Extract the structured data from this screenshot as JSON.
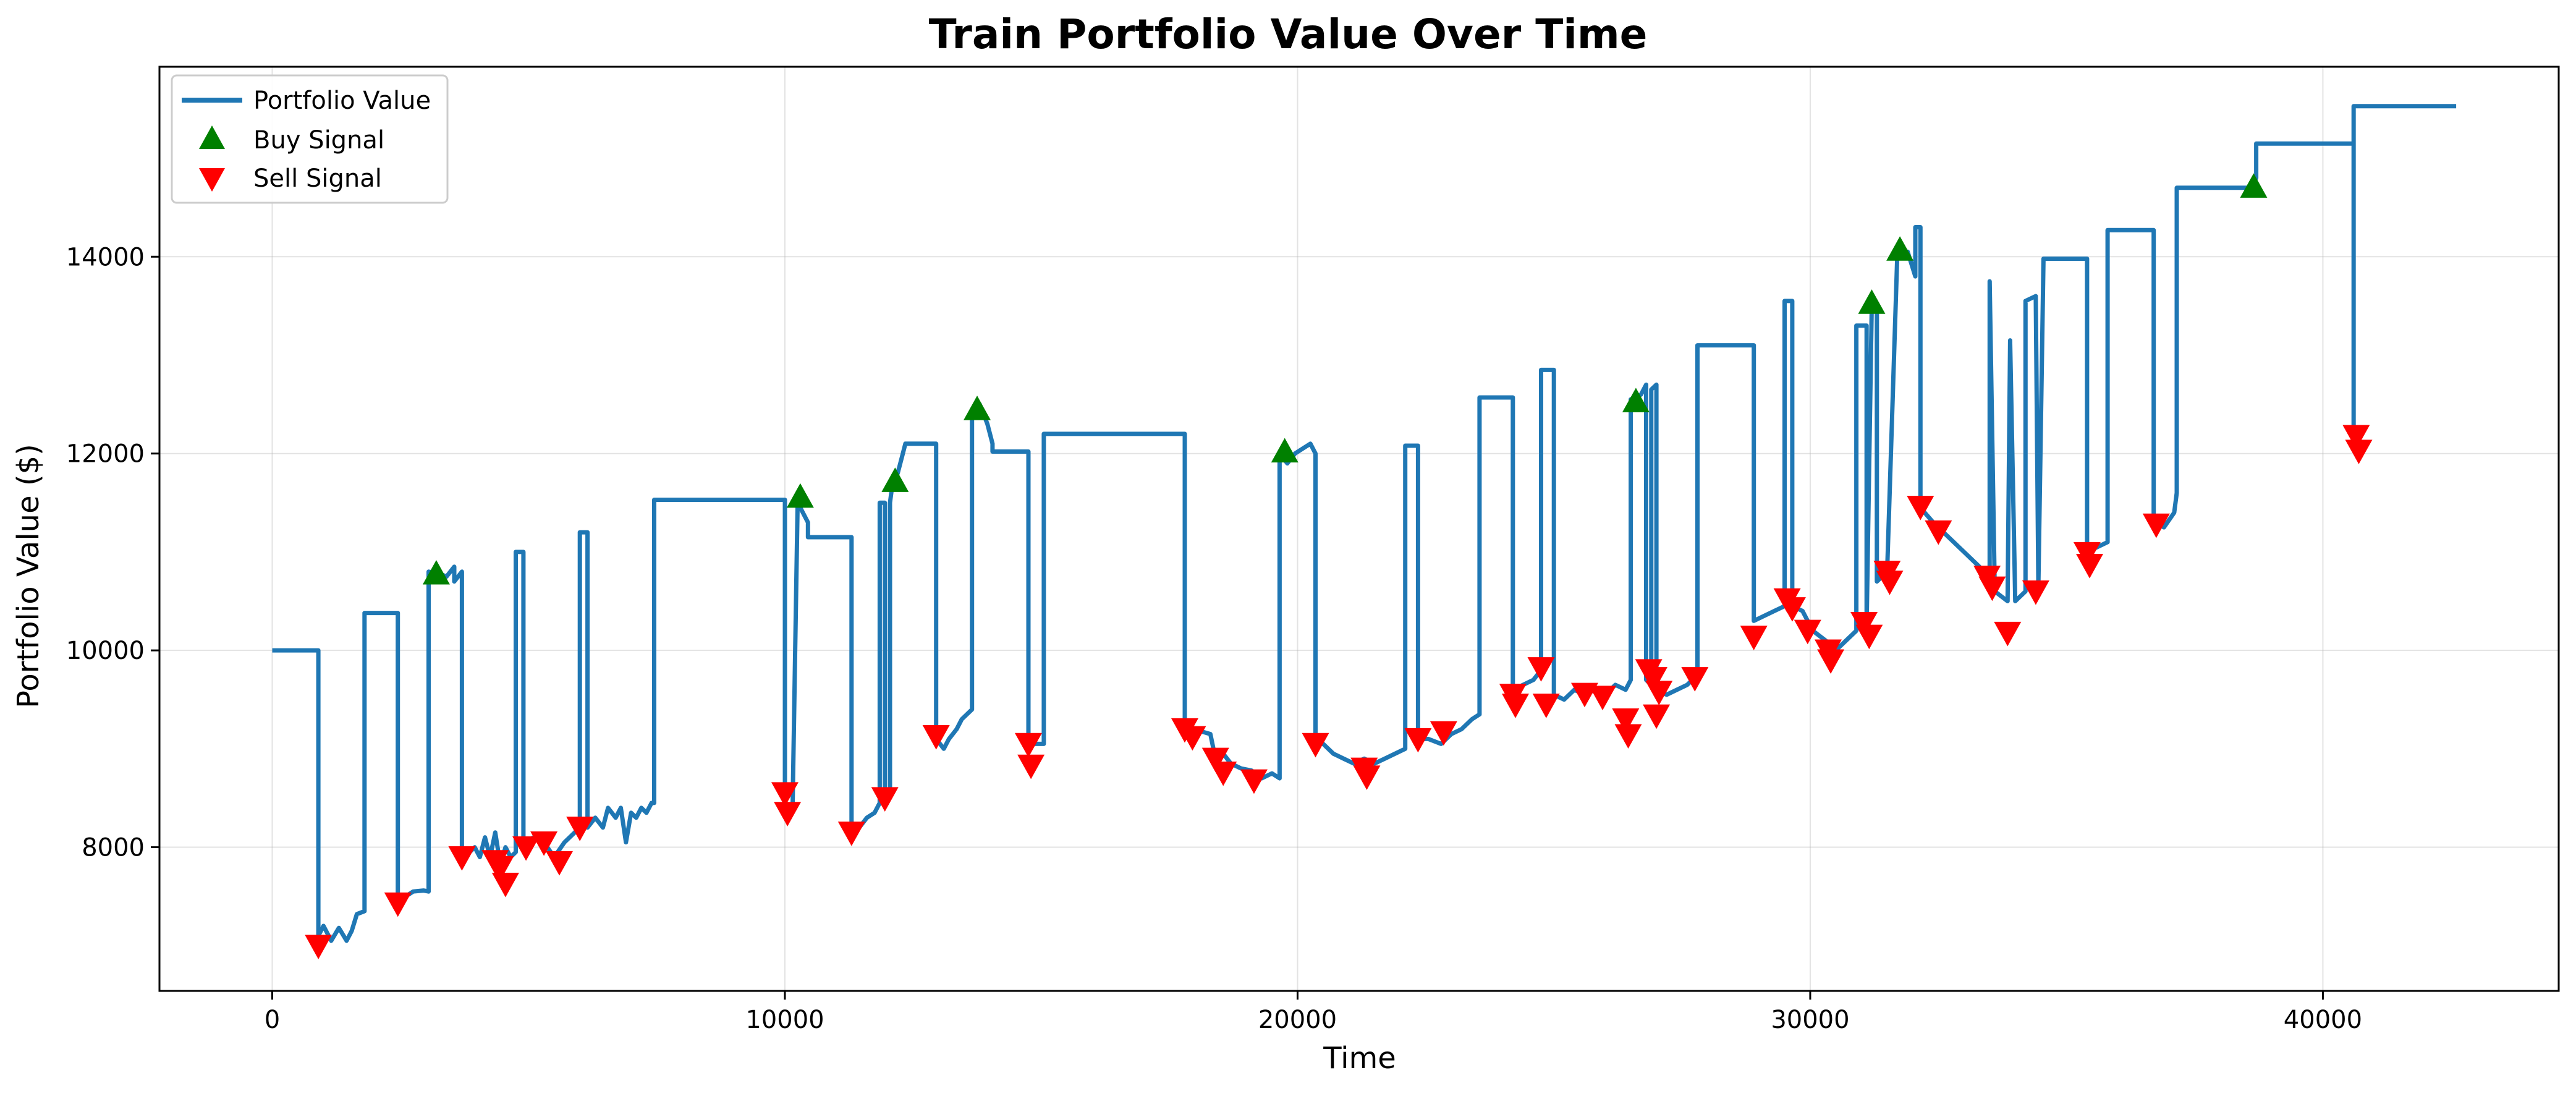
{
  "chart_data": {
    "type": "line",
    "title": "Train Portfolio Value Over Time",
    "xlabel": "Time",
    "ylabel": "Portfolio Value ($)",
    "xlim": [
      -2200,
      44600
    ],
    "ylim": [
      6540,
      15930
    ],
    "x_ticks": [
      0,
      10000,
      20000,
      30000,
      40000
    ],
    "y_ticks": [
      8000,
      10000,
      12000,
      14000
    ],
    "grid": true,
    "legend_position": "top-left",
    "series": [
      {
        "name": "Portfolio Value",
        "color": "#1f77b4",
        "points": [
          [
            0,
            10000
          ],
          [
            900,
            10000
          ],
          [
            900,
            7100
          ],
          [
            1000,
            7200
          ],
          [
            1150,
            7050
          ],
          [
            1300,
            7180
          ],
          [
            1450,
            7050
          ],
          [
            1550,
            7150
          ],
          [
            1650,
            7320
          ],
          [
            1800,
            7350
          ],
          [
            1800,
            10380
          ],
          [
            2450,
            10380
          ],
          [
            2450,
            7400
          ],
          [
            2600,
            7500
          ],
          [
            2750,
            7550
          ],
          [
            2950,
            7560
          ],
          [
            3050,
            7550
          ],
          [
            3050,
            10800
          ],
          [
            3250,
            10780
          ],
          [
            3400,
            10750
          ],
          [
            3550,
            10850
          ],
          [
            3550,
            10700
          ],
          [
            3700,
            10800
          ],
          [
            3700,
            7950
          ],
          [
            3850,
            7950
          ],
          [
            3950,
            8000
          ],
          [
            4050,
            7900
          ],
          [
            4150,
            8100
          ],
          [
            4250,
            7900
          ],
          [
            4350,
            8150
          ],
          [
            4450,
            7820
          ],
          [
            4550,
            8000
          ],
          [
            4650,
            7900
          ],
          [
            4750,
            7950
          ],
          [
            4750,
            11000
          ],
          [
            4900,
            11000
          ],
          [
            4900,
            8050
          ],
          [
            5100,
            8100
          ],
          [
            5300,
            8050
          ],
          [
            5500,
            7900
          ],
          [
            5700,
            8050
          ],
          [
            5900,
            8150
          ],
          [
            6000,
            8200
          ],
          [
            6000,
            11200
          ],
          [
            6150,
            11200
          ],
          [
            6150,
            8200
          ],
          [
            6300,
            8300
          ],
          [
            6450,
            8200
          ],
          [
            6550,
            8400
          ],
          [
            6700,
            8300
          ],
          [
            6800,
            8400
          ],
          [
            6900,
            8050
          ],
          [
            7000,
            8350
          ],
          [
            7100,
            8300
          ],
          [
            7200,
            8400
          ],
          [
            7300,
            8350
          ],
          [
            7400,
            8450
          ],
          [
            7450,
            8450
          ],
          [
            7450,
            11530
          ],
          [
            10000,
            11530
          ],
          [
            10000,
            8450
          ],
          [
            10150,
            8400
          ],
          [
            10250,
            11550
          ],
          [
            10300,
            11450
          ],
          [
            10400,
            11350
          ],
          [
            10450,
            11300
          ],
          [
            10450,
            11150
          ],
          [
            11300,
            11150
          ],
          [
            11300,
            8250
          ],
          [
            11450,
            8200
          ],
          [
            11600,
            8300
          ],
          [
            11750,
            8350
          ],
          [
            11850,
            8450
          ],
          [
            11850,
            11500
          ],
          [
            11950,
            11500
          ],
          [
            11950,
            8500
          ],
          [
            12050,
            8550
          ],
          [
            12050,
            11500
          ],
          [
            12100,
            11700
          ],
          [
            12200,
            11800
          ],
          [
            12300,
            12000
          ],
          [
            12350,
            12100
          ],
          [
            12950,
            12100
          ],
          [
            12950,
            9100
          ],
          [
            13100,
            9000
          ],
          [
            13200,
            9100
          ],
          [
            13350,
            9200
          ],
          [
            13450,
            9300
          ],
          [
            13550,
            9350
          ],
          [
            13650,
            9400
          ],
          [
            13650,
            12450
          ],
          [
            13800,
            12500
          ],
          [
            13950,
            12300
          ],
          [
            14050,
            12100
          ],
          [
            14050,
            12020
          ],
          [
            14750,
            12020
          ],
          [
            14750,
            9050
          ],
          [
            15050,
            9050
          ],
          [
            15050,
            12200
          ],
          [
            17800,
            12200
          ],
          [
            17800,
            9200
          ],
          [
            17950,
            9200
          ],
          [
            18100,
            9180
          ],
          [
            18300,
            9150
          ],
          [
            18400,
            8900
          ],
          [
            18550,
            8950
          ],
          [
            18700,
            8850
          ],
          [
            18900,
            8800
          ],
          [
            19100,
            8780
          ],
          [
            19300,
            8700
          ],
          [
            19500,
            8750
          ],
          [
            19650,
            8700
          ],
          [
            19650,
            12000
          ],
          [
            19800,
            11900
          ],
          [
            19950,
            12000
          ],
          [
            20100,
            12050
          ],
          [
            20250,
            12100
          ],
          [
            20350,
            12000
          ],
          [
            20350,
            9050
          ],
          [
            20500,
            9050
          ],
          [
            20700,
            8950
          ],
          [
            20900,
            8900
          ],
          [
            21100,
            8850
          ],
          [
            21300,
            8900
          ],
          [
            21500,
            8850
          ],
          [
            21700,
            8900
          ],
          [
            21900,
            8950
          ],
          [
            22100,
            9000
          ],
          [
            22100,
            12080
          ],
          [
            22350,
            12080
          ],
          [
            22350,
            9100
          ],
          [
            22550,
            9100
          ],
          [
            22800,
            9050
          ],
          [
            23000,
            9150
          ],
          [
            23200,
            9200
          ],
          [
            23400,
            9300
          ],
          [
            23550,
            9350
          ],
          [
            23550,
            12570
          ],
          [
            24200,
            12570
          ],
          [
            24200,
            9600
          ],
          [
            24400,
            9650
          ],
          [
            24600,
            9700
          ],
          [
            24750,
            9800
          ],
          [
            24750,
            12850
          ],
          [
            25000,
            12850
          ],
          [
            25000,
            9550
          ],
          [
            25200,
            9500
          ],
          [
            25400,
            9600
          ],
          [
            25600,
            9550
          ],
          [
            25800,
            9600
          ],
          [
            26000,
            9550
          ],
          [
            26200,
            9650
          ],
          [
            26400,
            9600
          ],
          [
            26500,
            9700
          ],
          [
            26500,
            12550
          ],
          [
            26700,
            12600
          ],
          [
            26800,
            12700
          ],
          [
            26800,
            9700
          ],
          [
            26900,
            9650
          ],
          [
            26900,
            12650
          ],
          [
            27000,
            12700
          ],
          [
            27000,
            9600
          ],
          [
            27200,
            9550
          ],
          [
            27400,
            9600
          ],
          [
            27600,
            9650
          ],
          [
            27800,
            9750
          ],
          [
            27800,
            13100
          ],
          [
            28900,
            13100
          ],
          [
            28900,
            10300
          ],
          [
            29100,
            10350
          ],
          [
            29300,
            10400
          ],
          [
            29500,
            10450
          ],
          [
            29500,
            13550
          ],
          [
            29650,
            13550
          ],
          [
            29650,
            10450
          ],
          [
            29850,
            10400
          ],
          [
            30050,
            10200
          ],
          [
            30300,
            10100
          ],
          [
            30500,
            10000
          ],
          [
            30700,
            10100
          ],
          [
            30900,
            10200
          ],
          [
            30900,
            13300
          ],
          [
            31100,
            13300
          ],
          [
            31100,
            10250
          ],
          [
            31200,
            13500
          ],
          [
            31300,
            13500
          ],
          [
            31300,
            10700
          ],
          [
            31500,
            10800
          ],
          [
            31700,
            14050
          ],
          [
            31900,
            14050
          ],
          [
            32050,
            13800
          ],
          [
            32050,
            14300
          ],
          [
            32150,
            14300
          ],
          [
            32150,
            11450
          ],
          [
            32400,
            11300
          ],
          [
            32600,
            11200
          ],
          [
            32800,
            11100
          ],
          [
            33000,
            11000
          ],
          [
            33200,
            10900
          ],
          [
            33400,
            10800
          ],
          [
            33500,
            10700
          ],
          [
            33500,
            13750
          ],
          [
            33600,
            10600
          ],
          [
            33850,
            10500
          ],
          [
            33900,
            13150
          ],
          [
            34000,
            10500
          ],
          [
            34200,
            10600
          ],
          [
            34200,
            13550
          ],
          [
            34400,
            13600
          ],
          [
            34450,
            10650
          ],
          [
            34550,
            13980
          ],
          [
            35400,
            13980
          ],
          [
            35400,
            11000
          ],
          [
            35600,
            11050
          ],
          [
            35800,
            11100
          ],
          [
            35800,
            14270
          ],
          [
            36700,
            14270
          ],
          [
            36700,
            11300
          ],
          [
            36900,
            11250
          ],
          [
            37100,
            11400
          ],
          [
            37150,
            11600
          ],
          [
            37150,
            14700
          ],
          [
            38600,
            14700
          ],
          [
            38700,
            14800
          ],
          [
            38700,
            15150
          ],
          [
            40600,
            15150
          ],
          [
            40600,
            12100
          ],
          [
            40600,
            15530
          ],
          [
            42600,
            15530
          ]
        ]
      },
      {
        "name": "Buy Signal",
        "color": "#008000",
        "marker": "triangle-up",
        "x": [
          3200,
          10300,
          12150,
          13750,
          19750,
          26600,
          31200,
          31750,
          38650
        ],
        "y": [
          10780,
          11560,
          11720,
          12450,
          12020,
          12530,
          13530,
          14070,
          14710
        ]
      },
      {
        "name": "Sell Signal",
        "color": "#ff0000",
        "marker": "triangle-down",
        "x": [
          900,
          2450,
          3700,
          4350,
          4450,
          4550,
          4950,
          5300,
          5600,
          6000,
          10000,
          10050,
          11300,
          11950,
          12950,
          14750,
          14800,
          17800,
          17950,
          18400,
          18550,
          19150,
          20350,
          21300,
          21350,
          22350,
          22850,
          24200,
          24250,
          24750,
          24850,
          25600,
          25950,
          26400,
          26450,
          26850,
          26950,
          27050,
          27000,
          27750,
          28900,
          29550,
          29650,
          29950,
          30350,
          30400,
          31050,
          31150,
          31500,
          31550,
          32150,
          32500,
          33450,
          33550,
          33850,
          34400,
          35400,
          35450,
          36750,
          40650,
          40700
        ],
        "y": [
          7000,
          7430,
          7900,
          7860,
          7800,
          7630,
          8000,
          8050,
          7850,
          8200,
          8550,
          8350,
          8150,
          8500,
          9130,
          9050,
          8830,
          9200,
          9120,
          8900,
          8760,
          8680,
          9050,
          8800,
          8720,
          9100,
          9170,
          9550,
          9450,
          9820,
          9450,
          9560,
          9530,
          9300,
          9140,
          9800,
          9720,
          9580,
          9340,
          9720,
          10140,
          10520,
          10430,
          10200,
          10000,
          9900,
          10280,
          10150,
          10800,
          10700,
          11460,
          11210,
          10750,
          10640,
          10180,
          10600,
          10990,
          10870,
          11280,
          12180,
          12030
        ]
      }
    ]
  }
}
